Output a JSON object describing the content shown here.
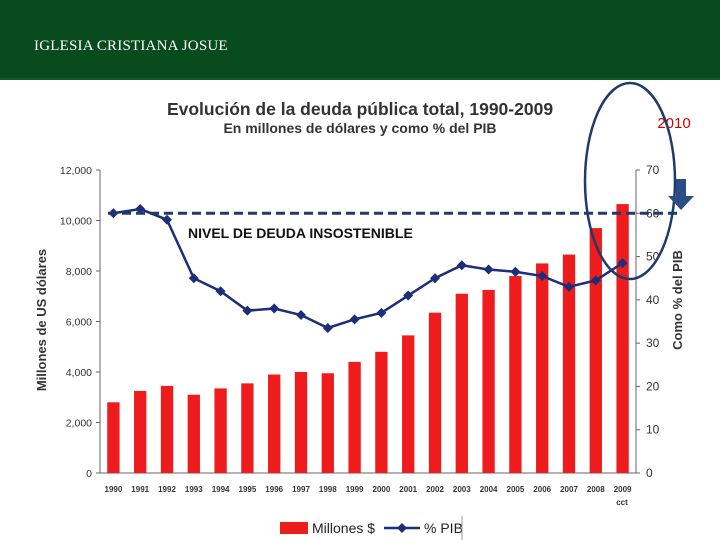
{
  "header": {
    "title": "IGLESIA CRISTIANA JOSUE"
  },
  "chart_data": {
    "type": "bar+line",
    "title": "Evolución de la deuda pública total, 1990-2009",
    "subtitle": "En millones de dólares y como % del PIB",
    "categories": [
      "1990",
      "1991",
      "1992",
      "1993",
      "1994",
      "1995",
      "1996",
      "1997",
      "1998",
      "1999",
      "2000",
      "2001",
      "2002",
      "2003",
      "2004",
      "2005",
      "2006",
      "2007",
      "2008",
      "2009"
    ],
    "category_footnote": "cct",
    "series": [
      {
        "name": "Millones $",
        "axis": "left",
        "kind": "bar",
        "color": "#ee1c1c",
        "values": [
          2800,
          3250,
          3450,
          3100,
          3350,
          3550,
          3900,
          4000,
          3950,
          4400,
          4800,
          5450,
          6350,
          7100,
          7250,
          7800,
          8300,
          8650,
          9700,
          10650
        ]
      },
      {
        "name": "% PIB",
        "axis": "right",
        "kind": "line",
        "color": "#1c2d7a",
        "values": [
          60,
          61,
          58.5,
          45,
          42,
          37.5,
          38,
          36.5,
          33.5,
          35.5,
          37,
          41,
          45,
          48,
          47,
          46.5,
          45.5,
          43,
          44.5,
          48.5
        ]
      }
    ],
    "ylabel": "Millones de US dólares",
    "ylabel2": "Como % del PIB",
    "ylim": [
      0,
      12000
    ],
    "ylim2": [
      0,
      70
    ],
    "yticks": [
      "0",
      "2,000",
      "4,000",
      "6,000",
      "8,000",
      "10,000",
      "12,000"
    ],
    "yticks2": [
      "0",
      "10",
      "20",
      "30",
      "40",
      "50",
      "60",
      "70"
    ],
    "legend_position": "bottom",
    "annotations": {
      "threshold_label": "NIVEL DE DEUDA INSOSTENIBLE",
      "threshold_value_pct": 60,
      "highlight_label": "2010",
      "highlight_color": "#cc0000",
      "threshold_color": "#1f3a6b",
      "arrow_color": "#2b4d86"
    }
  }
}
